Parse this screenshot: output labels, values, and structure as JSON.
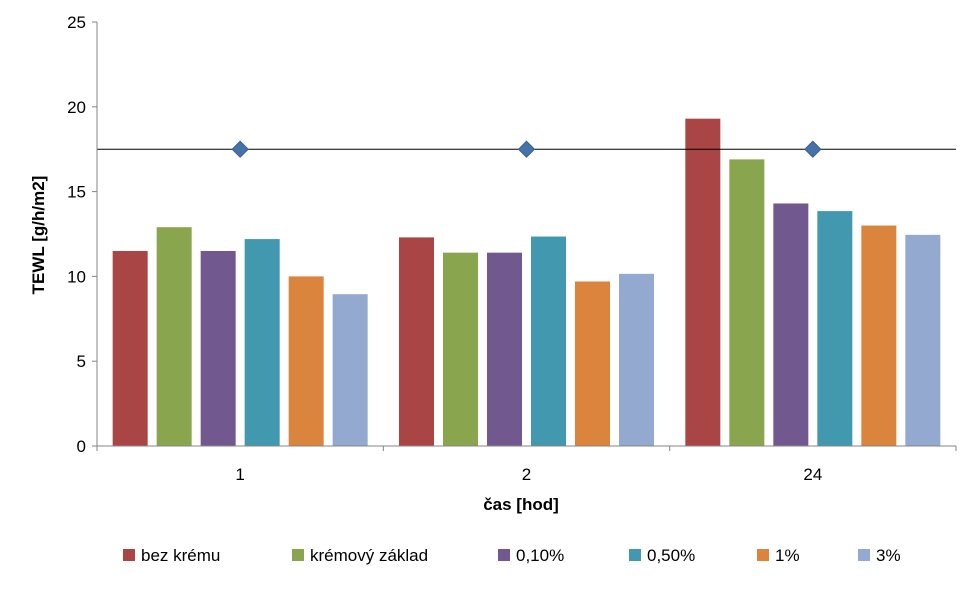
{
  "chart_data": {
    "type": "bar",
    "title": "",
    "xlabel": "čas [hod]",
    "ylabel": "TEWL [g/h/m2]",
    "categories": [
      "1",
      "2",
      "24"
    ],
    "ylim": [
      0,
      25
    ],
    "yticks": [
      0,
      5,
      10,
      15,
      20,
      25
    ],
    "grid": false,
    "legend_position": "bottom",
    "series": [
      {
        "name": "bez krému",
        "color": "#A94545",
        "values": [
          11.5,
          12.3,
          19.3
        ]
      },
      {
        "name": "krémový základ",
        "color": "#89A54E",
        "values": [
          12.9,
          11.4,
          16.9
        ]
      },
      {
        "name": "0,10%",
        "color": "#71588F",
        "values": [
          11.5,
          11.4,
          14.3
        ]
      },
      {
        "name": "0,50%",
        "color": "#4198AF",
        "values": [
          12.2,
          12.35,
          13.85
        ]
      },
      {
        "name": "1%",
        "color": "#DB843D",
        "values": [
          10.0,
          9.7,
          13.0
        ]
      },
      {
        "name": "3%",
        "color": "#93A9CF",
        "values": [
          8.95,
          10.15,
          12.45
        ]
      }
    ],
    "reference": {
      "value": 17.5,
      "line_color": "#000000",
      "marker_color": "#4572A7",
      "marker": "diamond"
    }
  }
}
